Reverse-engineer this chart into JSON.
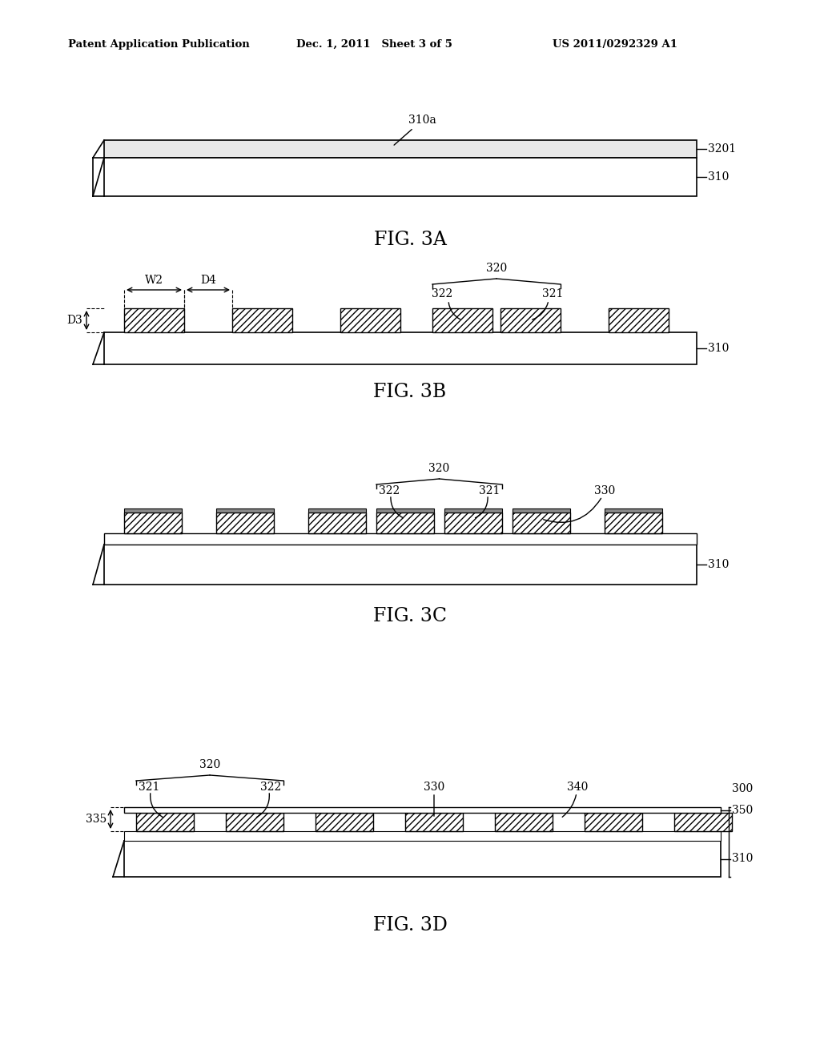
{
  "bg_color": "#ffffff",
  "header_left": "Patent Application Publication",
  "header_mid": "Dec. 1, 2011   Sheet 3 of 5",
  "header_right": "US 2011/0292329 A1"
}
